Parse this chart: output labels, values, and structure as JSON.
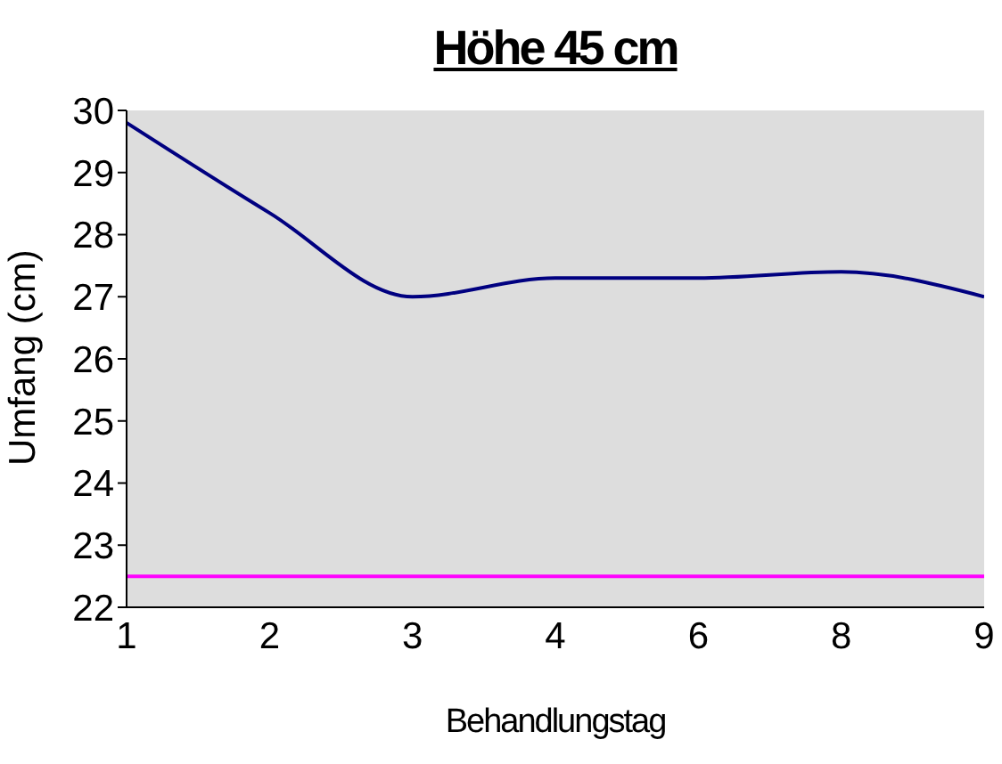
{
  "chart_data": {
    "type": "line",
    "title": "Höhe 45 cm",
    "xlabel": "Behandlungstag",
    "ylabel": "Umfang (cm)",
    "categories": [
      "1",
      "2",
      "3",
      "4",
      "6",
      "8",
      "9"
    ],
    "series": [
      {
        "color": "#000080",
        "values": [
          29.8,
          28.35,
          27.0,
          27.3,
          27.3,
          27.4,
          27.0
        ]
      }
    ],
    "ylim": [
      22,
      30
    ],
    "yticks": [
      22,
      23,
      24,
      25,
      26,
      27,
      28,
      29,
      30
    ],
    "ref_lines": [
      {
        "axis": "y",
        "value": 22.5,
        "color": "#ff00ff"
      }
    ],
    "marker": "none",
    "legend": false
  }
}
